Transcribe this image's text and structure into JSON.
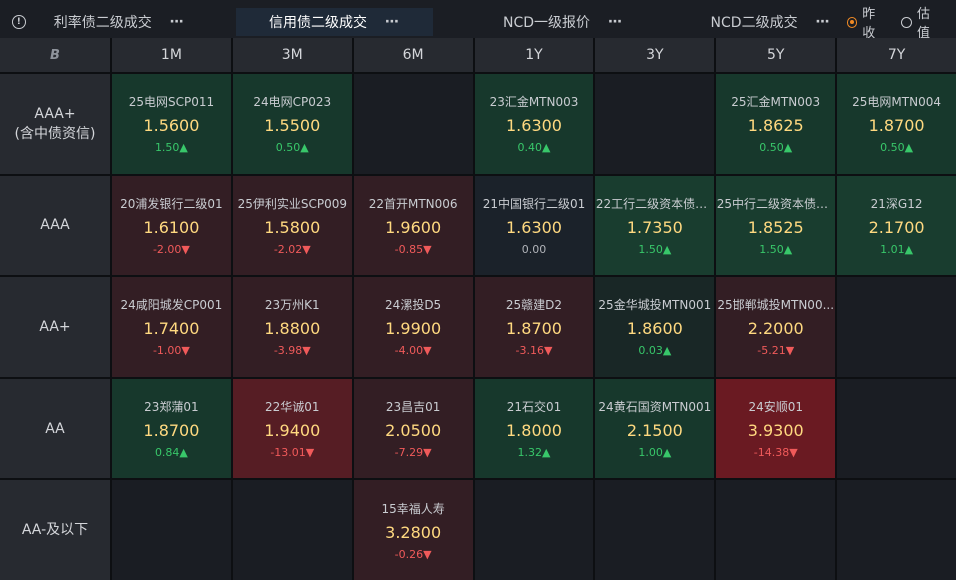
{
  "tabs": [
    {
      "label": "利率债二级成交",
      "more": "⋯"
    },
    {
      "label": "信用债二级成交",
      "more": "⋯",
      "active": true
    },
    {
      "label": "NCD一级报价",
      "more": "⋯"
    },
    {
      "label": "NCD二级成交",
      "more": "⋯"
    }
  ],
  "radio": {
    "opt1": "昨收",
    "opt2": "估值",
    "selected": "昨收"
  },
  "logo_text": "B",
  "columns": [
    "1M",
    "3M",
    "6M",
    "1Y",
    "3Y",
    "5Y",
    "7Y"
  ],
  "rows": [
    {
      "label": "AAA+\n(含中债资信)",
      "cells": [
        {
          "name": "25电网SCP011",
          "price": "1.5600",
          "change": "1.50▲",
          "dir": "up",
          "tone": "g1"
        },
        {
          "name": "24电网CP023",
          "price": "1.5500",
          "change": "0.50▲",
          "dir": "up",
          "tone": "g1"
        },
        null,
        {
          "name": "23汇金MTN003",
          "price": "1.6300",
          "change": "0.40▲",
          "dir": "up",
          "tone": "g1"
        },
        null,
        {
          "name": "25汇金MTN003",
          "price": "1.8625",
          "change": "0.50▲",
          "dir": "up",
          "tone": "g1"
        },
        {
          "name": "25电网MTN004",
          "price": "1.8700",
          "change": "0.50▲",
          "dir": "up",
          "tone": "g1"
        }
      ]
    },
    {
      "label": "AAA",
      "cells": [
        {
          "name": "20浦发银行二级01",
          "price": "1.6100",
          "change": "-2.00▼",
          "dir": "down",
          "tone": "r1"
        },
        {
          "name": "25伊利实业SCP009",
          "price": "1.5800",
          "change": "-2.02▼",
          "dir": "down",
          "tone": "r1"
        },
        {
          "name": "22首开MTN006",
          "price": "1.9600",
          "change": "-0.85▼",
          "dir": "down",
          "tone": "r1"
        },
        {
          "name": "21中国银行二级01",
          "price": "1.6300",
          "change": "0.00",
          "dir": "flat",
          "tone": "n"
        },
        {
          "name": "22工行二级资本债0...",
          "price": "1.7350",
          "change": "1.50▲",
          "dir": "up",
          "tone": "g2"
        },
        {
          "name": "25中行二级资本债0...",
          "price": "1.8525",
          "change": "1.50▲",
          "dir": "up",
          "tone": "g2"
        },
        {
          "name": "21深G12",
          "price": "2.1700",
          "change": "1.01▲",
          "dir": "up",
          "tone": "g2"
        }
      ]
    },
    {
      "label": "AA+",
      "cells": [
        {
          "name": "24咸阳城发CP001",
          "price": "1.7400",
          "change": "-1.00▼",
          "dir": "down",
          "tone": "r1"
        },
        {
          "name": "23万州K1",
          "price": "1.8800",
          "change": "-3.98▼",
          "dir": "down",
          "tone": "r1"
        },
        {
          "name": "24漯投D5",
          "price": "1.9900",
          "change": "-4.00▼",
          "dir": "down",
          "tone": "r1"
        },
        {
          "name": "25赣建D2",
          "price": "1.8700",
          "change": "-3.16▼",
          "dir": "down",
          "tone": "r1"
        },
        {
          "name": "25金华城投MTN001",
          "price": "1.8600",
          "change": "0.03▲",
          "dir": "up",
          "tone": "gd"
        },
        {
          "name": "25邯郸城投MTN00...",
          "price": "2.2000",
          "change": "-5.21▼",
          "dir": "down",
          "tone": "r1"
        },
        null
      ]
    },
    {
      "label": "AA",
      "cells": [
        {
          "name": "23郑蒲01",
          "price": "1.8700",
          "change": "0.84▲",
          "dir": "up",
          "tone": "g1"
        },
        {
          "name": "22华诚01",
          "price": "1.9400",
          "change": "-13.01▼",
          "dir": "down",
          "tone": "r2"
        },
        {
          "name": "23昌吉01",
          "price": "2.0500",
          "change": "-7.29▼",
          "dir": "down",
          "tone": "r1"
        },
        {
          "name": "21石交01",
          "price": "1.8000",
          "change": "1.32▲",
          "dir": "up",
          "tone": "g1"
        },
        {
          "name": "24黄石国资MTN001",
          "price": "2.1500",
          "change": "1.00▲",
          "dir": "up",
          "tone": "g1"
        },
        {
          "name": "24安顺01",
          "price": "3.9300",
          "change": "-14.38▼",
          "dir": "down",
          "tone": "r3"
        },
        null
      ]
    },
    {
      "label": "AA-及以下",
      "cells": [
        null,
        null,
        {
          "name": "15幸福人寿",
          "price": "3.2800",
          "change": "-0.26▼",
          "dir": "down",
          "tone": "r1"
        },
        null,
        null,
        null,
        null
      ]
    }
  ]
}
